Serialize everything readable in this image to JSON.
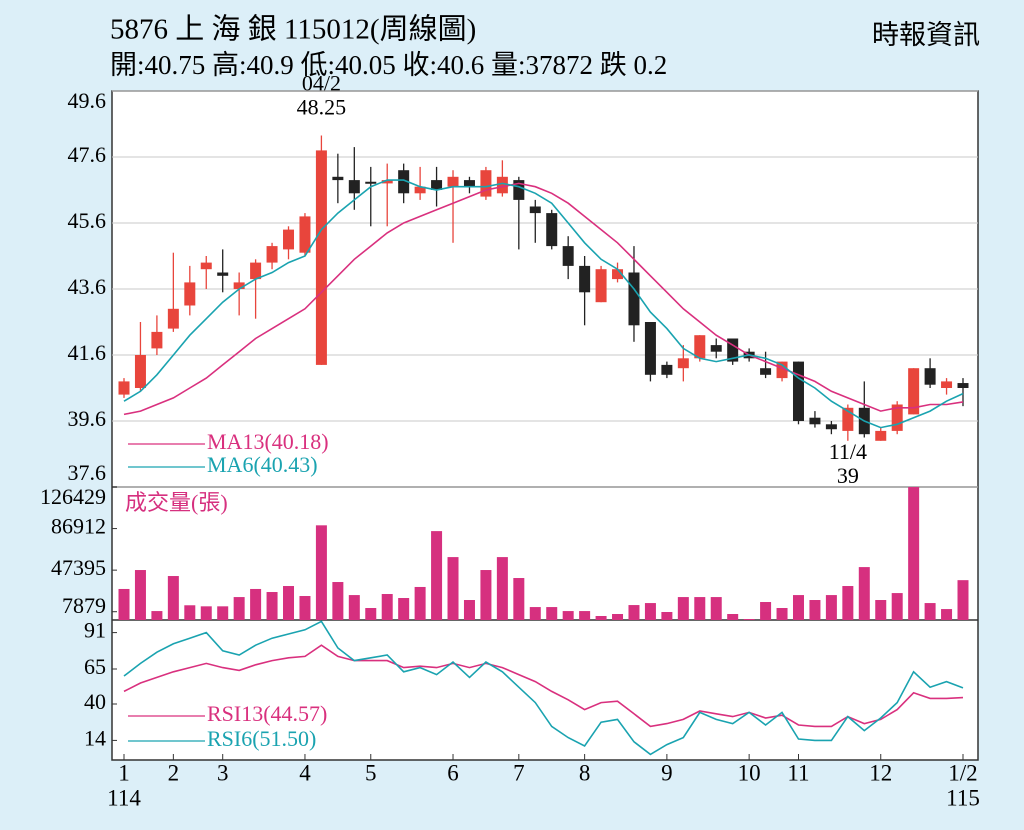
{
  "header": {
    "title": "5876 上 海 銀 115012(周線圖)",
    "source": "時報資訊",
    "info": "開:40.75 高:40.9 低:40.05 收:40.6 量:37872 跌 0.2"
  },
  "chart_data": [
    {
      "type": "candlestick",
      "up_color": "#e8453c",
      "down_color": "#222222",
      "grid": true,
      "ylim": [
        37.6,
        49.6
      ],
      "yticks": [
        37.6,
        39.6,
        41.6,
        43.6,
        45.6,
        47.6,
        49.6
      ],
      "open": [
        40.4,
        40.6,
        41.8,
        42.4,
        43.1,
        44.2,
        44.1,
        43.6,
        43.9,
        44.4,
        44.8,
        44.7,
        41.3,
        47.0,
        46.9,
        46.85,
        46.8,
        47.2,
        46.5,
        46.9,
        46.7,
        46.9,
        46.4,
        46.5,
        46.9,
        46.1,
        45.9,
        44.9,
        44.3,
        43.2,
        43.9,
        44.1,
        42.6,
        41.3,
        41.2,
        41.5,
        41.9,
        42.1,
        41.7,
        41.2,
        40.9,
        41.4,
        39.7,
        39.5,
        39.3,
        40.0,
        39.0,
        39.3,
        39.8,
        41.2,
        40.6,
        40.75
      ],
      "high": [
        40.9,
        42.6,
        42.8,
        44.7,
        44.3,
        44.6,
        44.8,
        44.1,
        44.5,
        45.0,
        45.5,
        45.9,
        48.25,
        47.7,
        47.9,
        47.3,
        47.4,
        47.4,
        47.3,
        47.3,
        47.2,
        47.0,
        47.3,
        47.5,
        47.0,
        46.3,
        46.0,
        45.2,
        44.6,
        44.3,
        44.4,
        44.9,
        42.6,
        41.4,
        41.9,
        42.2,
        42.1,
        42.1,
        41.8,
        41.7,
        41.4,
        41.4,
        39.9,
        39.6,
        40.1,
        40.8,
        39.4,
        40.2,
        41.2,
        41.5,
        40.9,
        40.9
      ],
      "low": [
        40.3,
        40.5,
        41.6,
        42.3,
        42.8,
        43.6,
        43.5,
        42.8,
        42.7,
        44.2,
        44.5,
        44.6,
        41.3,
        46.2,
        46.0,
        45.5,
        45.5,
        46.2,
        46.3,
        46.1,
        45.0,
        46.5,
        46.3,
        46.4,
        44.8,
        45.0,
        44.8,
        43.9,
        42.5,
        43.2,
        43.8,
        42.0,
        40.8,
        40.9,
        40.8,
        41.4,
        41.5,
        41.3,
        41.4,
        40.9,
        40.8,
        39.5,
        39.4,
        39.2,
        39.0,
        39.1,
        39.0,
        39.2,
        39.8,
        40.6,
        40.4,
        40.05
      ],
      "close": [
        40.8,
        41.6,
        42.3,
        43.0,
        43.8,
        44.4,
        44.0,
        43.8,
        44.4,
        44.9,
        45.4,
        45.8,
        47.8,
        46.9,
        46.5,
        46.8,
        46.9,
        46.5,
        46.7,
        46.6,
        47.0,
        46.7,
        47.2,
        47.0,
        46.3,
        45.9,
        44.9,
        44.3,
        43.5,
        44.2,
        44.2,
        42.5,
        41.0,
        41.0,
        41.5,
        42.2,
        41.7,
        41.4,
        41.5,
        41.0,
        41.4,
        39.6,
        39.5,
        39.35,
        40.0,
        39.2,
        39.3,
        40.1,
        41.2,
        40.7,
        40.8,
        40.6
      ],
      "series": [
        {
          "name": "MA13(40.18)",
          "color": "#d9307e",
          "values": [
            39.8,
            39.9,
            40.1,
            40.3,
            40.6,
            40.9,
            41.3,
            41.7,
            42.1,
            42.4,
            42.7,
            43.0,
            43.5,
            44.0,
            44.5,
            44.9,
            45.3,
            45.6,
            45.8,
            46.0,
            46.2,
            46.4,
            46.6,
            46.7,
            46.8,
            46.7,
            46.5,
            46.2,
            45.8,
            45.4,
            45.0,
            44.5,
            44.0,
            43.5,
            43.0,
            42.6,
            42.2,
            41.9,
            41.6,
            41.4,
            41.2,
            41.0,
            40.8,
            40.5,
            40.3,
            40.1,
            39.9,
            40.0,
            40.0,
            40.1,
            40.1,
            40.18
          ]
        },
        {
          "name": "MA6(40.43)",
          "color": "#1aa3b0",
          "values": [
            40.2,
            40.5,
            41.0,
            41.6,
            42.2,
            42.7,
            43.2,
            43.6,
            43.9,
            44.1,
            44.4,
            44.6,
            45.4,
            45.9,
            46.3,
            46.7,
            46.9,
            46.9,
            46.7,
            46.6,
            46.7,
            46.7,
            46.7,
            46.8,
            46.7,
            46.5,
            46.2,
            45.6,
            45.0,
            44.5,
            44.2,
            43.6,
            42.9,
            42.4,
            41.8,
            41.5,
            41.4,
            41.5,
            41.6,
            41.5,
            41.3,
            40.9,
            40.6,
            40.2,
            39.9,
            39.6,
            39.4,
            39.5,
            39.7,
            39.9,
            40.2,
            40.43
          ]
        }
      ],
      "annotations": [
        {
          "label": "04/2",
          "value": 48.25
        },
        {
          "label": "11/4",
          "value": 39
        }
      ]
    },
    {
      "type": "bar",
      "title": "成交量(張)",
      "color": "#d6307f",
      "ylim": [
        0,
        126429
      ],
      "yticks": [
        7879,
        47395,
        86912,
        126429
      ],
      "values": [
        29500,
        47500,
        8500,
        41800,
        14000,
        13000,
        13000,
        21800,
        29500,
        26600,
        32300,
        22800,
        90000,
        36100,
        23700,
        11400,
        24700,
        20900,
        31400,
        84500,
        59800,
        19000,
        47500,
        59800,
        39900,
        12300,
        12300,
        8500,
        8500,
        3800,
        5700,
        14200,
        16100,
        7600,
        21800,
        21800,
        21800,
        5700,
        950,
        17100,
        11400,
        23700,
        19000,
        23700,
        32300,
        50300,
        19000,
        25600,
        126400,
        16100,
        10400,
        37872
      ]
    },
    {
      "type": "line",
      "ylim": [
        0,
        100
      ],
      "yticks": [
        14,
        40,
        65,
        91
      ],
      "categories": [
        "1",
        null,
        null,
        "2",
        null,
        null,
        "3",
        null,
        null,
        null,
        null,
        "4",
        null,
        null,
        null,
        "5",
        null,
        null,
        null,
        null,
        "6",
        null,
        null,
        null,
        "7",
        null,
        null,
        null,
        "8",
        null,
        null,
        null,
        null,
        "9",
        null,
        null,
        null,
        null,
        "10",
        null,
        null,
        "11",
        null,
        null,
        null,
        null,
        "12",
        null,
        null,
        null,
        null,
        "1/2"
      ],
      "year_labels": [
        "114",
        null,
        null,
        null,
        null,
        null,
        null,
        null,
        null,
        null,
        null,
        null,
        null,
        null,
        null,
        null,
        null,
        null,
        null,
        null,
        null,
        null,
        null,
        null,
        null,
        null,
        null,
        null,
        null,
        null,
        null,
        null,
        null,
        null,
        null,
        null,
        null,
        null,
        null,
        null,
        null,
        null,
        null,
        null,
        null,
        null,
        null,
        null,
        null,
        null,
        null,
        "115"
      ],
      "series": [
        {
          "name": "RSI13(44.57)",
          "color": "#d9307e",
          "values": [
            49,
            55,
            59,
            63,
            66,
            69,
            66,
            64,
            68,
            71,
            73,
            74,
            82,
            74,
            71,
            71,
            71,
            66,
            67,
            66,
            69,
            66,
            69,
            66,
            61,
            56,
            49,
            43,
            36,
            41,
            42,
            33,
            24,
            26,
            29,
            35,
            33,
            31,
            34,
            30,
            32,
            25,
            24,
            24,
            31,
            26,
            29,
            36,
            48,
            44,
            44,
            44.57
          ]
        },
        {
          "name": "RSI6(51.50)",
          "color": "#1aa3b0",
          "values": [
            60,
            69,
            77,
            83,
            87,
            91,
            78,
            75,
            82,
            87,
            90,
            93,
            99,
            80,
            71,
            73,
            75,
            63,
            66,
            61,
            70,
            59,
            70,
            63,
            52,
            41,
            24,
            16,
            10,
            27,
            29,
            13,
            4,
            11,
            16,
            34,
            29,
            26,
            34,
            25,
            34,
            15,
            14,
            14,
            31,
            21,
            30,
            41,
            63,
            52,
            56,
            51.5
          ]
        }
      ]
    }
  ]
}
